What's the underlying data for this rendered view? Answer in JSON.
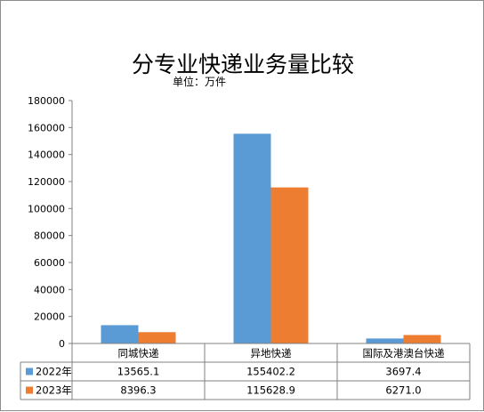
{
  "chart_data": {
    "type": "bar",
    "title": "分专业快递业务量比较",
    "unit_label": "单位：万件",
    "categories": [
      "同城快递",
      "异地快递",
      "国际及港澳台快递"
    ],
    "series": [
      {
        "name": "2022年",
        "values": [
          13565.1,
          155402.2,
          3697.4
        ],
        "value_labels": [
          "13565.1",
          "155402.2",
          "3697.4"
        ],
        "color": "#5B9BD5"
      },
      {
        "name": "2023年",
        "values": [
          8396.3,
          115628.9,
          6271.0
        ],
        "value_labels": [
          "8396.3",
          "115628.9",
          "6271.0"
        ],
        "color": "#ED7D31"
      }
    ],
    "ylim": [
      0,
      180000
    ],
    "yticks": [
      0,
      20000,
      40000,
      60000,
      80000,
      100000,
      120000,
      140000,
      160000,
      180000
    ],
    "grid": false,
    "legend": "data-table"
  }
}
